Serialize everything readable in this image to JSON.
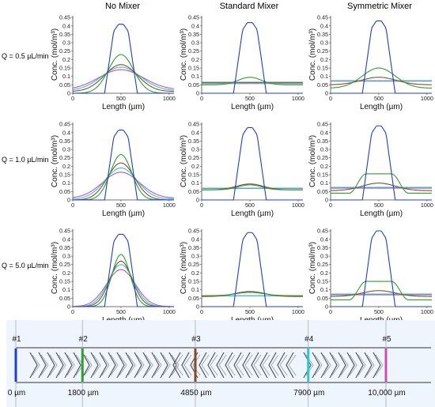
{
  "column_titles": [
    "No Mixer",
    "Standard Mixer",
    "Symmetric Mixer"
  ],
  "row_labels": [
    "Q = 0.5 µL/min",
    "Q = 1.0 µL/min",
    "Q = 5.0 µL/min"
  ],
  "axis": {
    "xlabel": "Length (µm)",
    "ylabel": "Conc. (mol/m³)",
    "xlim": [
      0,
      1050
    ],
    "ylim": [
      0,
      0.46
    ],
    "xticks": [
      "0",
      "500",
      "1000"
    ],
    "yticks": [
      "0",
      "0.05",
      "0.1",
      "0.15",
      "0.2",
      "0.25",
      "0.3",
      "0.35",
      "0.4",
      "0.45"
    ]
  },
  "series_colors": {
    "p1": "#1f3fc8",
    "p2": "#2e9e2e",
    "p3": "#8b4a2a",
    "p4": "#28c8d8",
    "p5": "#c850b8"
  },
  "chart_data": [
    {
      "type": "line",
      "title": "No Mixer",
      "row": "Q = 0.5 µL/min",
      "series": [
        {
          "key": "p1",
          "shape": "rect",
          "peak": 0.41,
          "base": 0.0
        },
        {
          "key": "p2",
          "shape": "gauss",
          "peak": 0.23,
          "base": 0.0,
          "sigma": 130
        },
        {
          "key": "p3",
          "shape": "gauss",
          "peak": 0.17,
          "base": 0.01,
          "sigma": 170
        },
        {
          "key": "p4",
          "shape": "gauss",
          "peak": 0.155,
          "base": 0.015,
          "sigma": 200
        },
        {
          "key": "p5",
          "shape": "gauss",
          "peak": 0.14,
          "base": 0.02,
          "sigma": 230
        }
      ]
    },
    {
      "type": "line",
      "title": "Standard Mixer",
      "row": "Q = 0.5 µL/min",
      "series": [
        {
          "key": "p1",
          "shape": "rect",
          "peak": 0.42,
          "base": 0.0
        },
        {
          "key": "p2",
          "shape": "gauss",
          "peak": 0.095,
          "base": 0.05,
          "sigma": 120
        },
        {
          "key": "p3",
          "shape": "flat",
          "peak": 0.065,
          "base": 0.065
        },
        {
          "key": "p4",
          "shape": "flat",
          "peak": 0.06,
          "base": 0.06
        },
        {
          "key": "p5",
          "shape": "flat",
          "peak": 0.058,
          "base": 0.058
        }
      ]
    },
    {
      "type": "line",
      "title": "Symmetric Mixer",
      "row": "Q = 0.5 µL/min",
      "series": [
        {
          "key": "p1",
          "shape": "rect",
          "peak": 0.43,
          "base": 0.0
        },
        {
          "key": "p2",
          "shape": "gauss",
          "peak": 0.15,
          "base": 0.03,
          "sigma": 170
        },
        {
          "key": "p3",
          "shape": "gauss",
          "peak": 0.095,
          "base": 0.05,
          "sigma": 180
        },
        {
          "key": "p4",
          "shape": "flat",
          "peak": 0.075,
          "base": 0.075
        },
        {
          "key": "p5",
          "shape": "flat",
          "peak": 0.072,
          "base": 0.072
        }
      ]
    },
    {
      "type": "line",
      "title": "No Mixer",
      "row": "Q = 1.0 µL/min",
      "series": [
        {
          "key": "p1",
          "shape": "rect",
          "peak": 0.415,
          "base": 0.0
        },
        {
          "key": "p2",
          "shape": "gauss",
          "peak": 0.27,
          "base": 0.0,
          "sigma": 110
        },
        {
          "key": "p3",
          "shape": "gauss",
          "peak": 0.22,
          "base": 0.0,
          "sigma": 140
        },
        {
          "key": "p4",
          "shape": "gauss",
          "peak": 0.19,
          "base": 0.005,
          "sigma": 165
        },
        {
          "key": "p5",
          "shape": "gauss",
          "peak": 0.165,
          "base": 0.01,
          "sigma": 190
        }
      ]
    },
    {
      "type": "line",
      "title": "Standard Mixer",
      "row": "Q = 1.0 µL/min",
      "series": [
        {
          "key": "p1",
          "shape": "rect",
          "peak": 0.43,
          "base": 0.0
        },
        {
          "key": "p2",
          "shape": "gauss",
          "peak": 0.09,
          "base": 0.06,
          "sigma": 120
        },
        {
          "key": "p3",
          "shape": "gauss",
          "peak": 0.095,
          "base": 0.06,
          "sigma": 140
        },
        {
          "key": "p4",
          "shape": "flat",
          "peak": 0.07,
          "base": 0.07
        },
        {
          "key": "p5",
          "shape": "flat",
          "peak": 0.068,
          "base": 0.068
        }
      ]
    },
    {
      "type": "line",
      "title": "Symmetric Mixer",
      "row": "Q = 1.0 µL/min",
      "series": [
        {
          "key": "p1",
          "shape": "rect",
          "peak": 0.44,
          "base": 0.0
        },
        {
          "key": "p2",
          "shape": "plateau",
          "peak": 0.155,
          "base": 0.04
        },
        {
          "key": "p3",
          "shape": "gauss",
          "peak": 0.1,
          "base": 0.055,
          "sigma": 170
        },
        {
          "key": "p4",
          "shape": "flat",
          "peak": 0.075,
          "base": 0.075
        },
        {
          "key": "p5",
          "shape": "flat",
          "peak": 0.07,
          "base": 0.07
        }
      ]
    },
    {
      "type": "line",
      "title": "No Mixer",
      "row": "Q = 5.0 µL/min",
      "series": [
        {
          "key": "p1",
          "shape": "rect",
          "peak": 0.43,
          "base": 0.0
        },
        {
          "key": "p2",
          "shape": "gauss",
          "peak": 0.31,
          "base": 0.0,
          "sigma": 95
        },
        {
          "key": "p3",
          "shape": "gauss",
          "peak": 0.27,
          "base": 0.0,
          "sigma": 115
        },
        {
          "key": "p4",
          "shape": "gauss",
          "peak": 0.25,
          "base": 0.0,
          "sigma": 130
        },
        {
          "key": "p5",
          "shape": "gauss",
          "peak": 0.22,
          "base": 0.0,
          "sigma": 150
        }
      ]
    },
    {
      "type": "line",
      "title": "Standard Mixer",
      "row": "Q = 5.0 µL/min",
      "series": [
        {
          "key": "p1",
          "shape": "rect",
          "peak": 0.44,
          "base": 0.0
        },
        {
          "key": "p2",
          "shape": "gauss",
          "peak": 0.085,
          "base": 0.065,
          "sigma": 140
        },
        {
          "key": "p3",
          "shape": "gauss",
          "peak": 0.09,
          "base": 0.06,
          "sigma": 150
        },
        {
          "key": "p4",
          "shape": "flat",
          "peak": 0.065,
          "base": 0.065
        },
        {
          "key": "p5",
          "shape": "flat",
          "peak": 0.064,
          "base": 0.064
        }
      ]
    },
    {
      "type": "line",
      "title": "Symmetric Mixer",
      "row": "Q = 5.0 µL/min",
      "series": [
        {
          "key": "p1",
          "shape": "rect",
          "peak": 0.45,
          "base": 0.0
        },
        {
          "key": "p2",
          "shape": "plateau",
          "peak": 0.15,
          "base": 0.04
        },
        {
          "key": "p3",
          "shape": "gauss",
          "peak": 0.095,
          "base": 0.06,
          "sigma": 170
        },
        {
          "key": "p4",
          "shape": "flat",
          "peak": 0.075,
          "base": 0.075
        },
        {
          "key": "p5",
          "shape": "flat",
          "peak": 0.07,
          "base": 0.07
        }
      ]
    }
  ],
  "channel": {
    "markers": [
      {
        "label": "#1",
        "distance": "0 µm",
        "color": "#1f3fc8",
        "pos": 0
      },
      {
        "label": "#2",
        "distance": "1800 µm",
        "color": "#2e9e2e",
        "pos": 1800
      },
      {
        "label": "#3",
        "distance": "4850 µm",
        "color": "#8b4a2a",
        "pos": 4850
      },
      {
        "label": "#4",
        "distance": "7900 µm",
        "color": "#28c8d8",
        "pos": 7900
      },
      {
        "label": "#5",
        "distance": "10,000 µm",
        "color": "#c850b8",
        "pos": 10000
      }
    ],
    "length": 10000
  }
}
